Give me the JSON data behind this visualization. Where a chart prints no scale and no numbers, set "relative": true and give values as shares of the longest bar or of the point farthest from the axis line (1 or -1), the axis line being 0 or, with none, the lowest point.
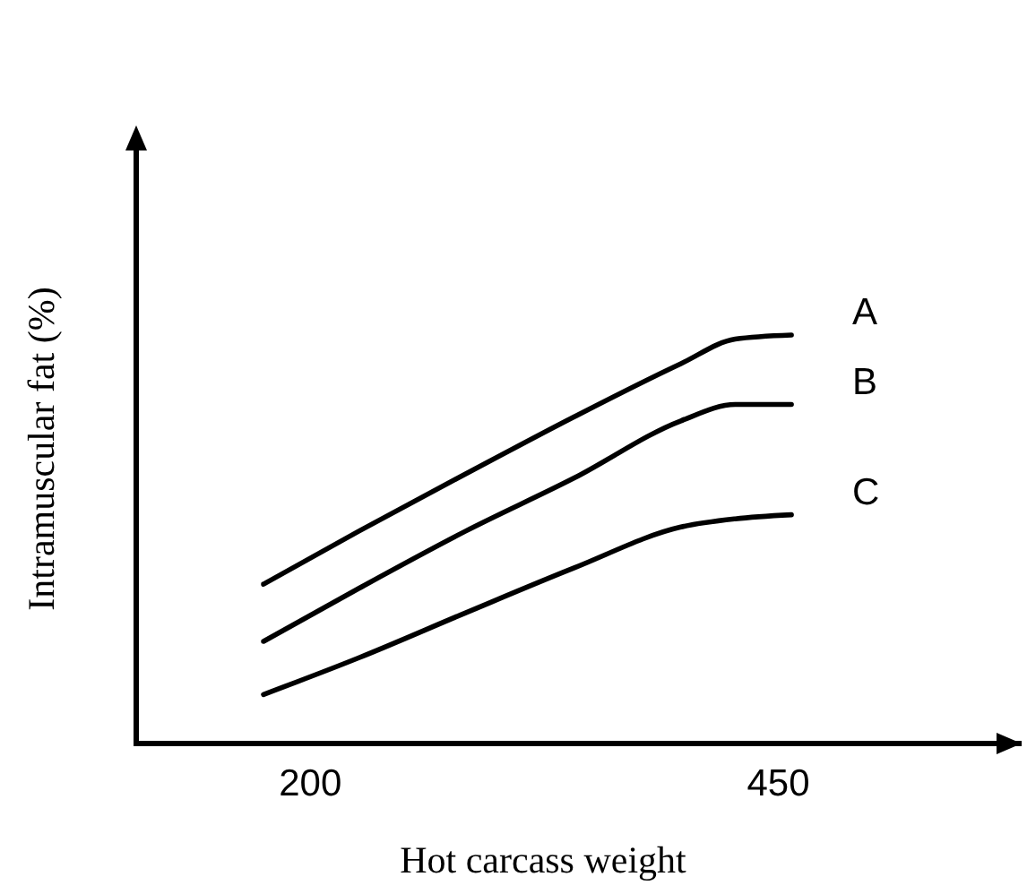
{
  "chart_data": {
    "type": "line",
    "relative": true,
    "xlabel": "Hot carcass weight",
    "ylabel": "Intramuscular fat (%)",
    "xlim": [
      107,
      580
    ],
    "xticks": [
      200,
      450
    ],
    "series": [
      {
        "name": "A",
        "color": "#000000",
        "x": [
          175,
          226,
          283,
          341,
          398,
          427,
          457
        ],
        "values": [
          0.39,
          0.52,
          0.66,
          0.8,
          0.93,
          0.99,
          1
        ]
      },
      {
        "name": "B",
        "color": "#000000",
        "x": [
          175,
          226,
          283,
          341,
          398,
          427,
          457
        ],
        "values": [
          0.25,
          0.38,
          0.52,
          0.65,
          0.79,
          0.83,
          0.83
        ]
      },
      {
        "name": "C",
        "color": "#000000",
        "x": [
          175,
          226,
          283,
          341,
          398,
          427,
          457
        ],
        "values": [
          0.12,
          0.21,
          0.32,
          0.43,
          0.53,
          0.55,
          0.56
        ]
      }
    ]
  }
}
